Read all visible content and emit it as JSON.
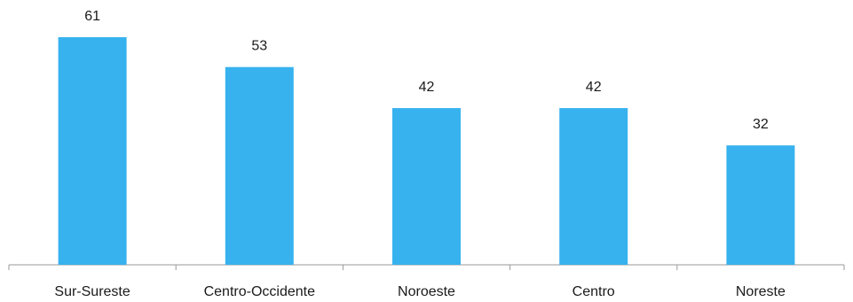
{
  "chart_data": {
    "type": "bar",
    "categories": [
      "Sur-Sureste",
      "Centro-Occidente",
      "Noroeste",
      "Centro",
      "Noreste"
    ],
    "values": [
      61,
      53,
      42,
      42,
      32
    ],
    "data_labels": [
      "61",
      "53",
      "42",
      "42",
      "32"
    ],
    "title": "",
    "xlabel": "",
    "ylabel": "",
    "ylim": [
      0,
      61
    ],
    "grid": false,
    "bar_color": "#37B2EE"
  }
}
